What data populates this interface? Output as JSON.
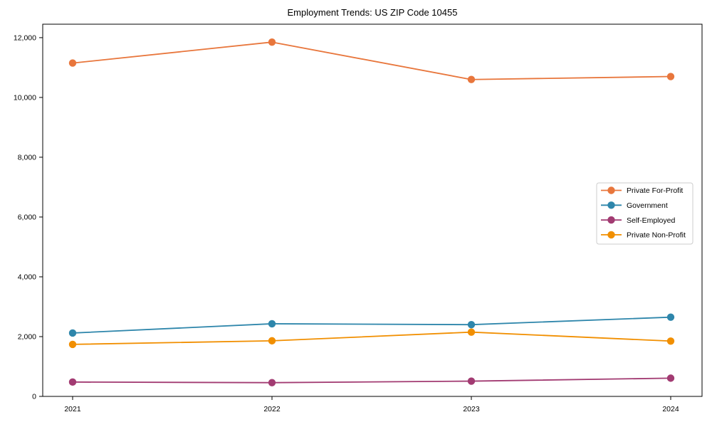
{
  "title": "Employment Trends: US ZIP Code 10455",
  "chart_data": {
    "type": "line",
    "title": "Employment Trends: US ZIP Code 10455",
    "x": [
      2021,
      2022,
      2023,
      2024
    ],
    "xtick_labels": [
      "2021",
      "2022",
      "2023",
      "2024"
    ],
    "series": [
      {
        "name": "Private For-Profit",
        "color": "#E8763C",
        "values": [
          11150,
          11850,
          10600,
          10700
        ]
      },
      {
        "name": "Government",
        "color": "#2E86AB",
        "values": [
          2120,
          2430,
          2400,
          2650
        ]
      },
      {
        "name": "Self-Employed",
        "color": "#A23B72",
        "values": [
          480,
          460,
          510,
          610
        ]
      },
      {
        "name": "Private Non-Profit",
        "color": "#F18F01",
        "values": [
          1740,
          1860,
          2150,
          1850
        ]
      }
    ],
    "xlabel": "",
    "ylabel": "",
    "ylim": [
      0,
      12450
    ],
    "yticks": [
      0,
      2000,
      4000,
      6000,
      8000,
      10000,
      12000
    ],
    "ytick_labels": [
      "0",
      "2,000",
      "4,000",
      "6,000",
      "8,000",
      "10,000",
      "12,000"
    ],
    "grid": false,
    "marker": "circle",
    "legend_position": "center-right",
    "legend_border_color": "#cccccc",
    "spine_color": "#000000",
    "background_color": "#ffffff"
  }
}
